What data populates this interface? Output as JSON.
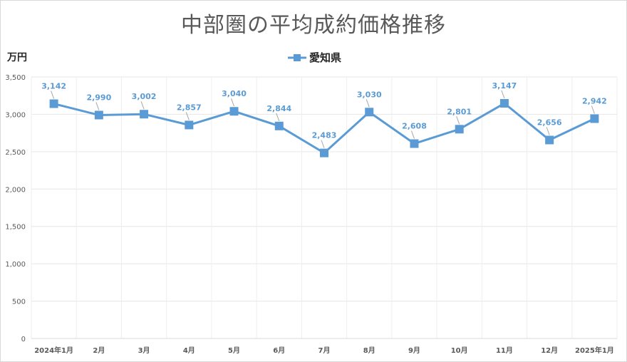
{
  "chart_data": {
    "type": "line",
    "title": "中部圏の平均成約価格推移",
    "ylabel": "万円",
    "xlabel": "",
    "ylim": [
      0,
      3500
    ],
    "yticks": [
      0,
      500,
      1000,
      1500,
      2000,
      2500,
      3000,
      3500
    ],
    "ytick_labels": [
      "0",
      "500",
      "1,000",
      "1,500",
      "2,000",
      "2,500",
      "3,000",
      "3,500"
    ],
    "categories": [
      "2024年1月",
      "2月",
      "3月",
      "4月",
      "5月",
      "6月",
      "7月",
      "8月",
      "9月",
      "10月",
      "11月",
      "12月",
      "2025年1月"
    ],
    "legend_position": "top-center",
    "grid": true,
    "series": [
      {
        "name": "愛知県",
        "color": "#5b9bd5",
        "values": [
          3142,
          2990,
          3002,
          2857,
          3040,
          2844,
          2483,
          3030,
          2608,
          2801,
          3147,
          2656,
          2942
        ],
        "labels": [
          "3,142",
          "2,990",
          "3,002",
          "2,857",
          "3,040",
          "2,844",
          "2,483",
          "3,030",
          "2,608",
          "2,801",
          "3,147",
          "2,656",
          "2,942"
        ]
      }
    ]
  }
}
